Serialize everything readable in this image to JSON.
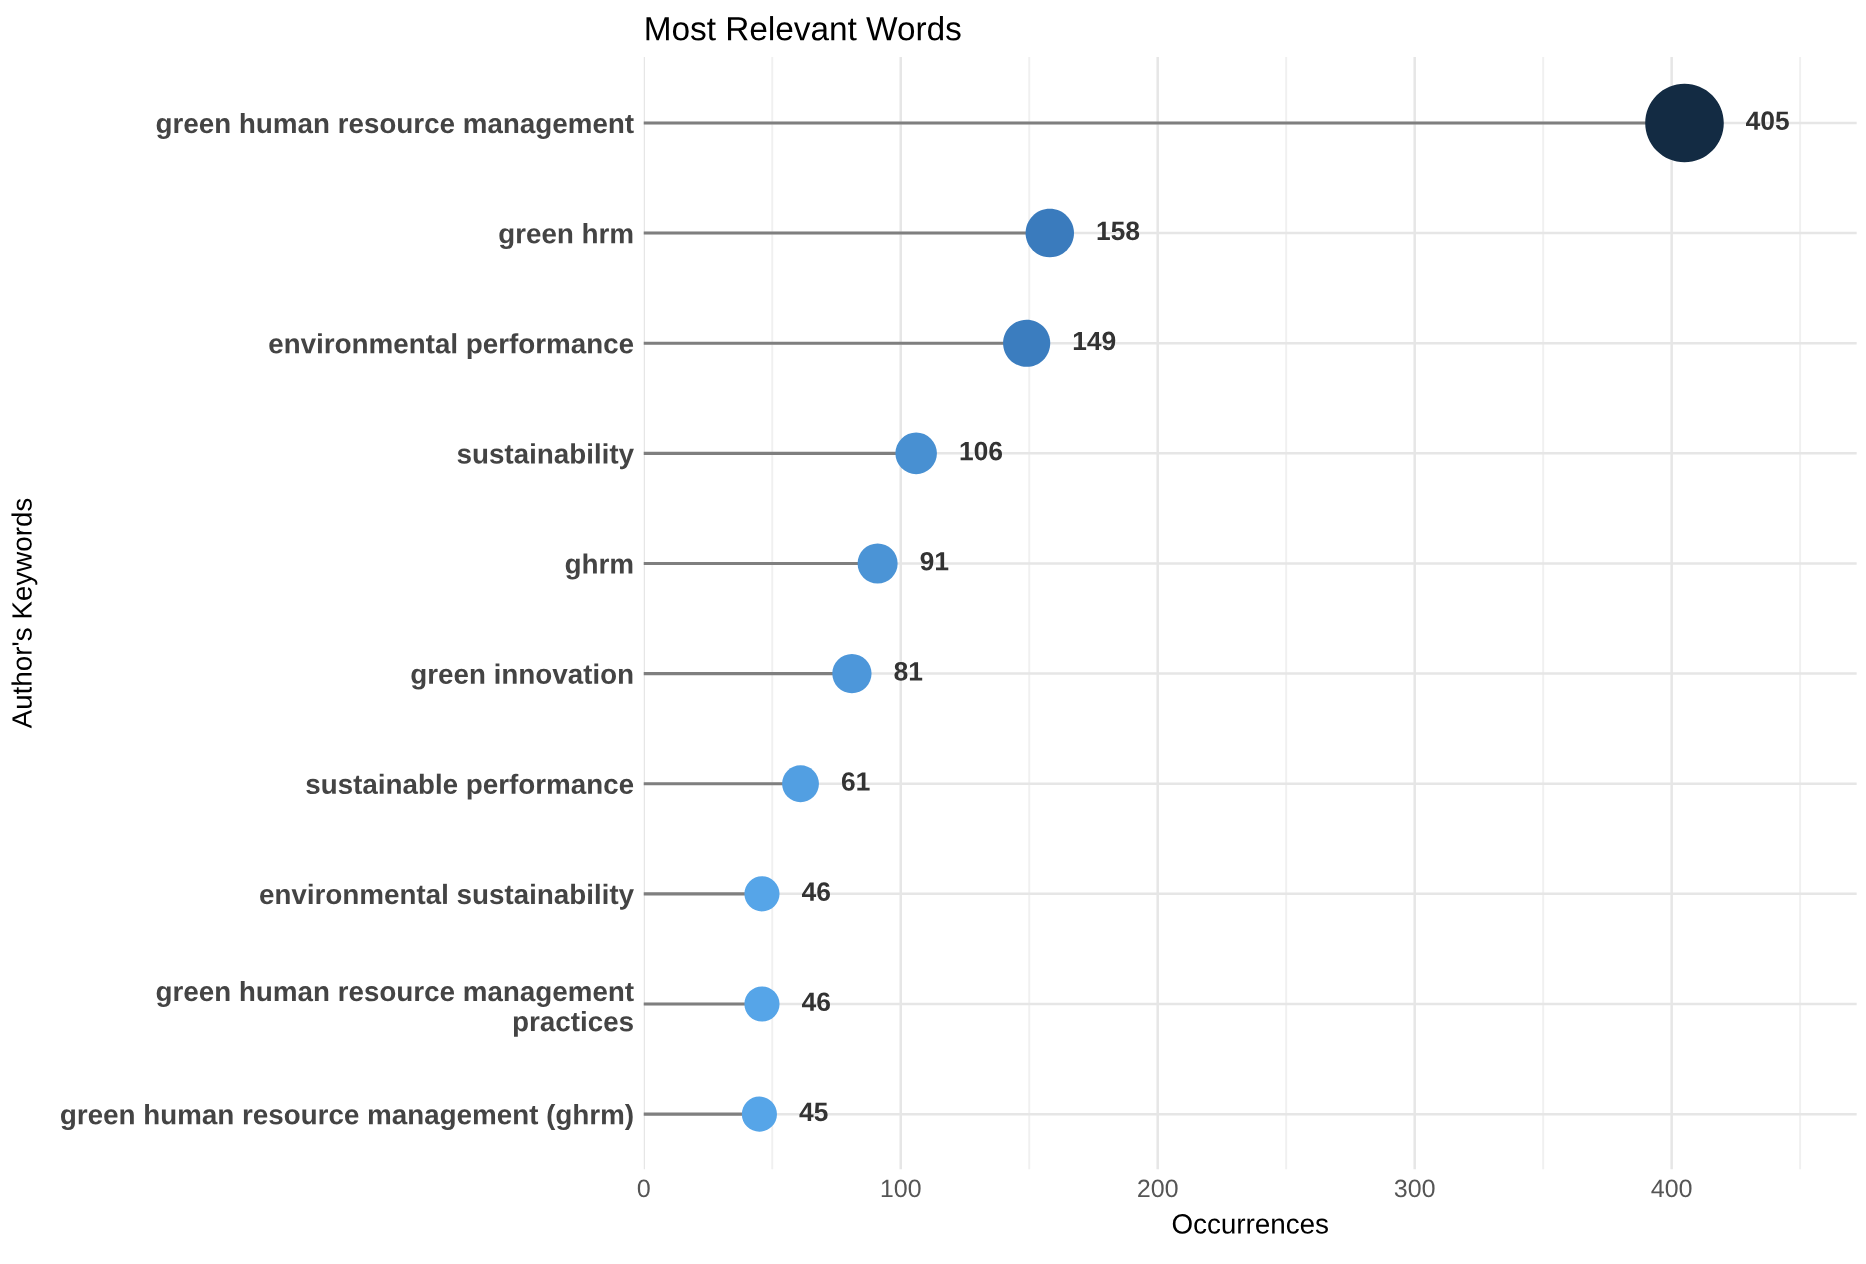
{
  "chart_data": {
    "type": "lollipop",
    "title": "Most Relevant Words",
    "xlabel": "Occurrences",
    "ylabel": "Author's Keywords",
    "orientation": "horizontal",
    "categories": [
      "green human resource management",
      "green hrm",
      "environmental performance",
      "sustainability",
      "ghrm",
      "green innovation",
      "sustainable performance",
      "environmental sustainability",
      "green human resource management\npractices",
      "green human resource management (ghrm)"
    ],
    "values": [
      405,
      158,
      149,
      106,
      91,
      81,
      61,
      46,
      46,
      45
    ],
    "colors": [
      "#132b43",
      "#3a7bbd",
      "#3b7dbf",
      "#4890d2",
      "#4b94d6",
      "#4d97da",
      "#529fe2",
      "#56a5e8",
      "#56a5e8",
      "#56a5e8"
    ],
    "sizes": [
      1,
      0.38,
      0.36,
      0.28,
      0.26,
      0.25,
      0.22,
      0.2,
      0.2,
      0.2
    ],
    "xlim": [
      0,
      472
    ],
    "xticks": [
      0,
      100,
      200,
      300,
      400
    ],
    "grid": true,
    "data_labels": true,
    "legend": false
  }
}
